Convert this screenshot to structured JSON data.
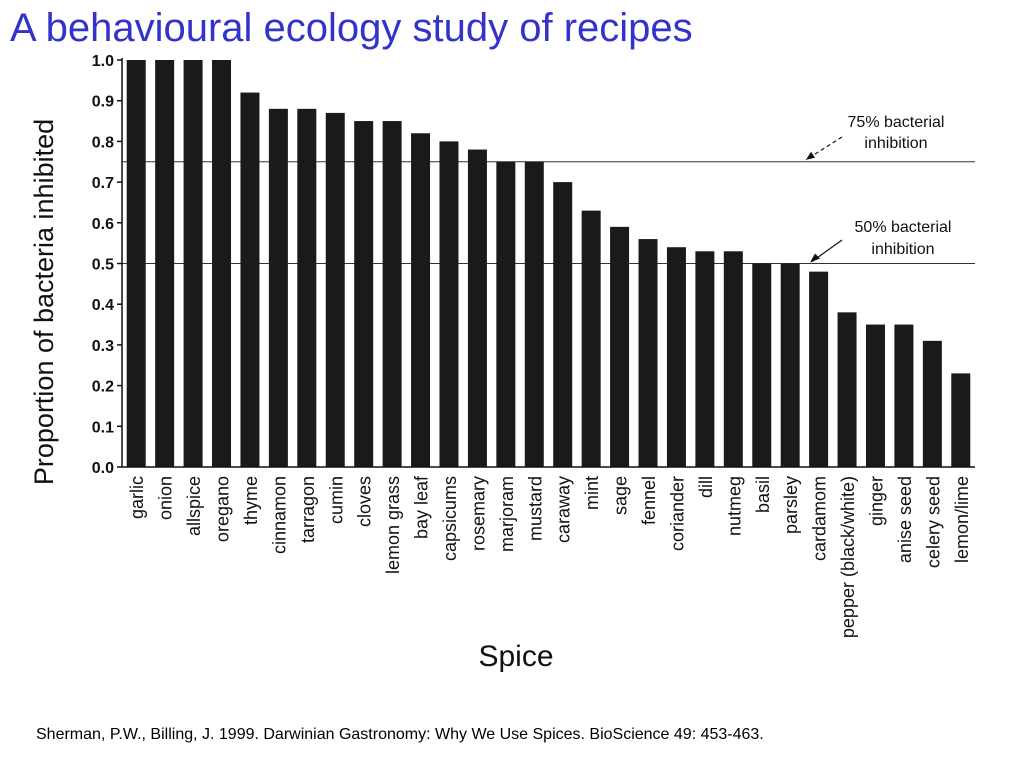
{
  "slide": {
    "title": "A behavioural ecology study of recipes",
    "citation": "Sherman, P.W., Billing, J. 1999. Darwinian Gastronomy: Why We Use Spices. BioScience 49: 453-463."
  },
  "chart_data": {
    "type": "bar",
    "title": "",
    "xlabel": "Spice",
    "ylabel": "Proportion of bacteria inhibited",
    "ylim": [
      0,
      1
    ],
    "yticks": [
      "0.0",
      "0.1",
      "0.2",
      "0.3",
      "0.4",
      "0.5",
      "0.6",
      "0.7",
      "0.8",
      "0.9",
      "1.0"
    ],
    "categories": [
      "garlic",
      "onion",
      "allspice",
      "oregano",
      "thyme",
      "cinnamon",
      "tarragon",
      "cumin",
      "cloves",
      "lemon grass",
      "bay leaf",
      "capsicums",
      "rosemary",
      "marjoram",
      "mustard",
      "caraway",
      "mint",
      "sage",
      "fennel",
      "coriander",
      "dill",
      "nutmeg",
      "basil",
      "parsley",
      "cardamom",
      "pepper (black/white)",
      "ginger",
      "anise seed",
      "celery seed",
      "lemon/lime"
    ],
    "values": [
      1.0,
      1.0,
      1.0,
      1.0,
      0.92,
      0.88,
      0.88,
      0.87,
      0.85,
      0.85,
      0.82,
      0.8,
      0.78,
      0.75,
      0.75,
      0.7,
      0.63,
      0.59,
      0.56,
      0.54,
      0.53,
      0.53,
      0.5,
      0.5,
      0.48,
      0.38,
      0.35,
      0.35,
      0.31,
      0.23
    ],
    "bar_color": "#1a1a1a",
    "reference_lines": [
      {
        "value": 0.75,
        "label_line1": "75% bacterial",
        "label_line2": "inhibition"
      },
      {
        "value": 0.5,
        "label_line1": "50% bacterial",
        "label_line2": "inhibition"
      }
    ],
    "grid": false
  }
}
